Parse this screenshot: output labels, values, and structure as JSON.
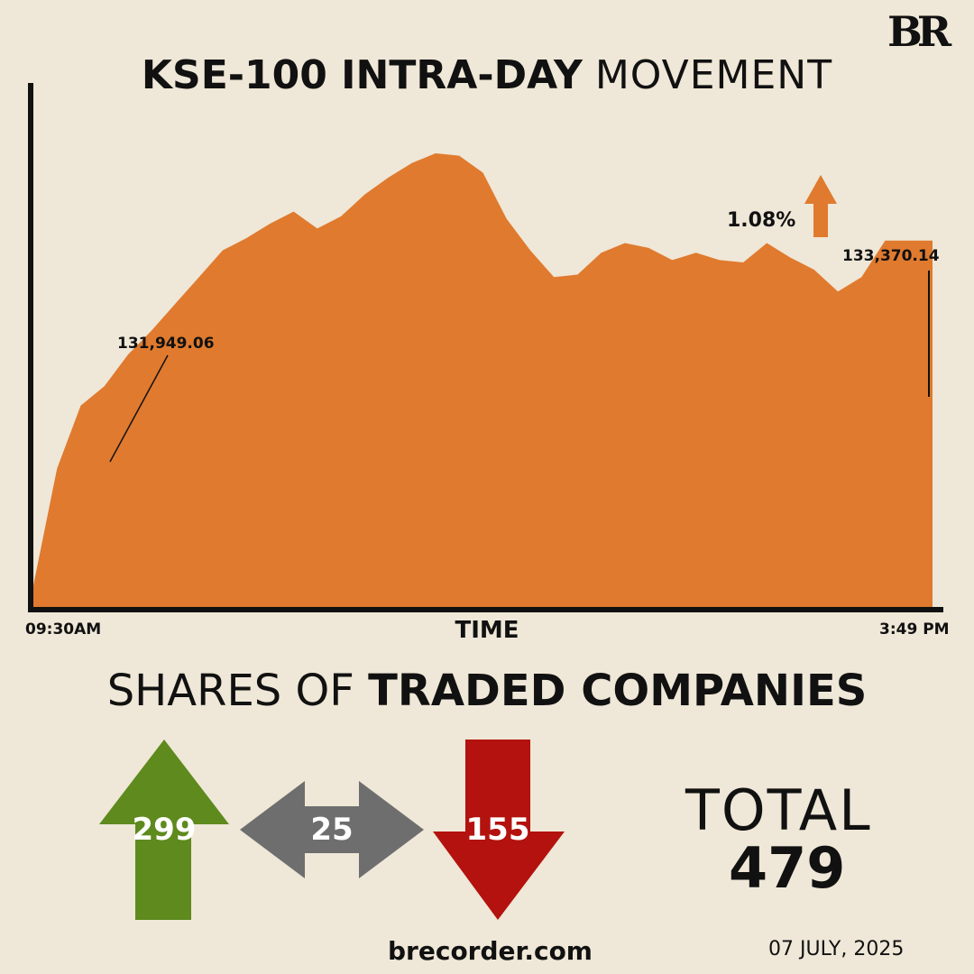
{
  "brand": {
    "logo_text": "BR"
  },
  "title": {
    "bold": "KSE-100 INTRA-DAY",
    "light": "MOVEMENT"
  },
  "chart_data": {
    "type": "area",
    "title": "KSE-100 INTRA-DAY MOVEMENT",
    "xlabel": "TIME",
    "ylabel": "",
    "x_start_label": "09:30AM",
    "x_end_label": "3:49 PM",
    "annotations": {
      "open_value": "131,949.06",
      "close_value": "133,370.14",
      "change_pct": "1.08%",
      "change_direction": "up"
    },
    "ylim": [
      131860,
      134020
    ],
    "x": [
      "09:30",
      "09:40",
      "09:50",
      "10:00",
      "10:10",
      "10:20",
      "10:30",
      "10:40",
      "10:50",
      "11:00",
      "11:10",
      "11:20",
      "11:30",
      "11:40",
      "11:50",
      "12:00",
      "12:10",
      "12:20",
      "12:30",
      "12:40",
      "12:50",
      "13:00",
      "13:10",
      "13:20",
      "13:30",
      "13:40",
      "13:50",
      "14:00",
      "14:10",
      "14:20",
      "14:30",
      "14:40",
      "14:50",
      "15:00",
      "15:10",
      "15:20",
      "15:30",
      "15:40",
      "15:49"
    ],
    "series": [
      {
        "values": [
          131949,
          132430,
          132690,
          132770,
          132900,
          133000,
          133110,
          133220,
          133330,
          133380,
          133440,
          133490,
          133420,
          133470,
          133560,
          133630,
          133690,
          133730,
          133720,
          133650,
          133460,
          133330,
          133220,
          133230,
          133320,
          133360,
          133340,
          133290,
          133320,
          133290,
          133280,
          133360,
          133300,
          133250,
          133160,
          133220,
          133370,
          133370,
          133370
        ]
      }
    ],
    "colors": {
      "area": "#e07a2e",
      "axis": "#111111"
    }
  },
  "shares": {
    "title_light": "SHARES OF",
    "title_bold": "TRADED COMPANIES",
    "advanced": 299,
    "unchanged": 25,
    "declined": 155,
    "total_label": "TOTAL",
    "total": 479,
    "colors": {
      "advanced": "#5e8a1e",
      "unchanged": "#6e6e6e",
      "declined": "#b3120e"
    }
  },
  "footer": {
    "site": "brecorder.com",
    "date": "07 JULY, 2025"
  }
}
